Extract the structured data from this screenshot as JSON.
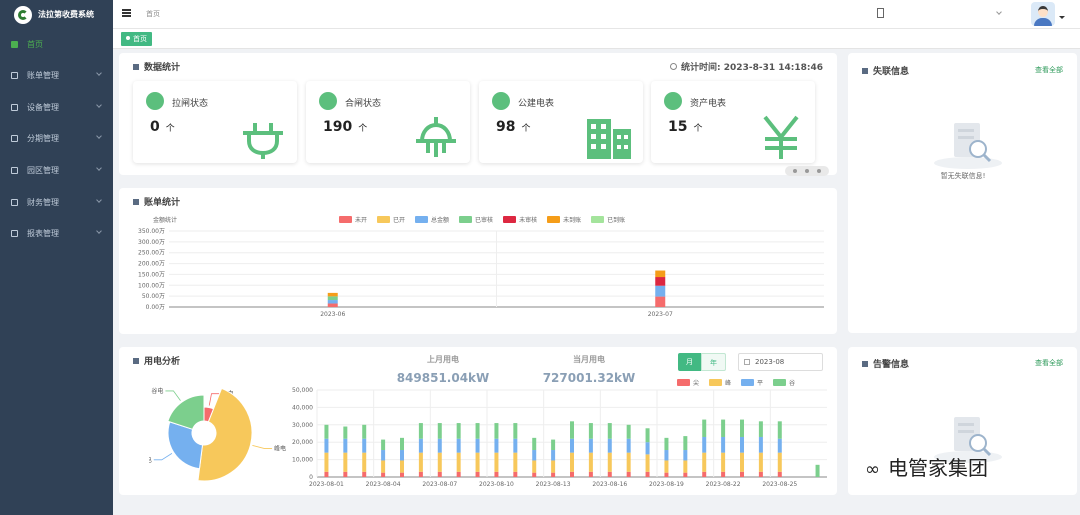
{
  "app": {
    "title": "法拉第收费系统"
  },
  "sidebar": {
    "items": [
      {
        "label": "首页",
        "active": true
      },
      {
        "label": "账单管理"
      },
      {
        "label": "设备管理"
      },
      {
        "label": "分期管理"
      },
      {
        "label": "园区管理"
      },
      {
        "label": "财务管理"
      },
      {
        "label": "报表管理"
      }
    ]
  },
  "header": {
    "breadcrumb": "首页",
    "tab": "首页"
  },
  "stats": {
    "title": "数据统计",
    "time_label": "统计时间:",
    "time": "2023-8-31 14:18:46",
    "cards": [
      {
        "label": "拉闸状态",
        "value": "0",
        "unit": "个",
        "icon": "plug-icon"
      },
      {
        "label": "合闸状态",
        "value": "190",
        "unit": "个",
        "icon": "socket-icon"
      },
      {
        "label": "公建电表",
        "value": "98",
        "unit": "个",
        "icon": "building-icon"
      },
      {
        "label": "资产电表",
        "value": "15",
        "unit": "个",
        "icon": "yen-icon"
      }
    ]
  },
  "lost": {
    "title": "失联信息",
    "see_all": "查看全部",
    "empty": "暂无失联信息!"
  },
  "alarm": {
    "title": "告警信息",
    "see_all": "查看全部"
  },
  "bill": {
    "title": "账单统计"
  },
  "power": {
    "title": "用电分析",
    "last_month_label": "上月用电",
    "last_month_value": "849851.04kW",
    "this_month_label": "当月用电",
    "this_month_value": "727001.32kW",
    "tab_month": "月",
    "tab_year": "年",
    "date": "2023-08"
  },
  "watermark": "电管家集团",
  "chart_data": [
    {
      "type": "bar",
      "title": "",
      "ylabel": "金额统计",
      "categories": [
        "2023-06",
        "2023-07"
      ],
      "ylim": [
        0,
        350
      ],
      "yticks": [
        "0.00万",
        "50.00万",
        "100.00万",
        "150.00万",
        "200.00万",
        "250.00万",
        "300.00万",
        "350.00万"
      ],
      "series": [
        {
          "name": "未开",
          "color": "#f56c6c",
          "values": [
            16,
            48
          ]
        },
        {
          "name": "已开",
          "color": "#f7c85b",
          "values": [
            0,
            0
          ]
        },
        {
          "name": "总金额",
          "color": "#75b0ef",
          "values": [
            16,
            50
          ]
        },
        {
          "name": "已审核",
          "color": "#7ccf8d",
          "values": [
            17,
            0
          ]
        },
        {
          "name": "未审核",
          "color": "#dd2841",
          "values": [
            0,
            40
          ]
        },
        {
          "name": "未到账",
          "color": "#f59d19",
          "values": [
            16,
            30
          ]
        },
        {
          "name": "已到账",
          "color": "#a4e49c",
          "values": [
            0,
            0
          ]
        }
      ]
    },
    {
      "type": "pie",
      "slices": [
        {
          "name": "尖电",
          "value": 6,
          "color": "#f56c6c"
        },
        {
          "name": "峰电",
          "value": 46,
          "color": "#f7c85b"
        },
        {
          "name": "平电",
          "value": 28,
          "color": "#75b0ef"
        },
        {
          "name": "谷电",
          "value": 20,
          "color": "#7ccf8d"
        }
      ]
    },
    {
      "type": "bar",
      "ylim": [
        0,
        50000
      ],
      "yticks": [
        "0",
        "10,000",
        "20,000",
        "30,000",
        "40,000",
        "50,000"
      ],
      "legend": [
        "尖",
        "峰",
        "平",
        "谷"
      ],
      "xticks": [
        "2023-08-01",
        "2023-08-04",
        "2023-08-07",
        "2023-08-10",
        "2023-08-13",
        "2023-08-16",
        "2023-08-19",
        "2023-08-22",
        "2023-08-25"
      ],
      "categories": [
        "08-01",
        "08-02",
        "08-03",
        "08-04",
        "08-05",
        "08-06",
        "08-07",
        "08-08",
        "08-09",
        "08-10",
        "08-11",
        "08-12",
        "08-13",
        "08-14",
        "08-15",
        "08-16",
        "08-17",
        "08-18",
        "08-19",
        "08-20",
        "08-21",
        "08-22",
        "08-23",
        "08-24",
        "08-25",
        "08-26",
        "08-27"
      ],
      "series": [
        {
          "name": "尖",
          "color": "#f56c6c",
          "values": [
            3000,
            3000,
            3000,
            2500,
            2500,
            3000,
            3000,
            3000,
            3000,
            3000,
            3000,
            2500,
            2500,
            3000,
            3000,
            3000,
            3000,
            3000,
            2500,
            2500,
            3000,
            3000,
            3000,
            3000,
            3000,
            0,
            0
          ]
        },
        {
          "name": "峰",
          "color": "#f7c85b",
          "values": [
            11000,
            11000,
            11000,
            7000,
            7000,
            11000,
            11000,
            11000,
            11000,
            11000,
            11000,
            7000,
            7000,
            11000,
            11000,
            11000,
            11000,
            10000,
            7000,
            7000,
            11000,
            11000,
            11000,
            11000,
            11000,
            0,
            0
          ]
        },
        {
          "name": "平",
          "color": "#75b0ef",
          "values": [
            8000,
            8000,
            8000,
            6000,
            6000,
            8000,
            8000,
            8000,
            8000,
            8000,
            8000,
            6000,
            6000,
            8000,
            8000,
            8000,
            8000,
            7000,
            6000,
            6000,
            9000,
            9000,
            9000,
            9000,
            8000,
            0,
            0
          ]
        },
        {
          "name": "谷",
          "color": "#7ccf8d",
          "values": [
            8000,
            7000,
            8000,
            6000,
            7000,
            9000,
            9000,
            9000,
            9000,
            9000,
            9000,
            7000,
            6000,
            10000,
            9000,
            9000,
            8000,
            8000,
            7000,
            8000,
            10000,
            10000,
            10000,
            9000,
            10000,
            0,
            7000
          ]
        }
      ]
    }
  ]
}
